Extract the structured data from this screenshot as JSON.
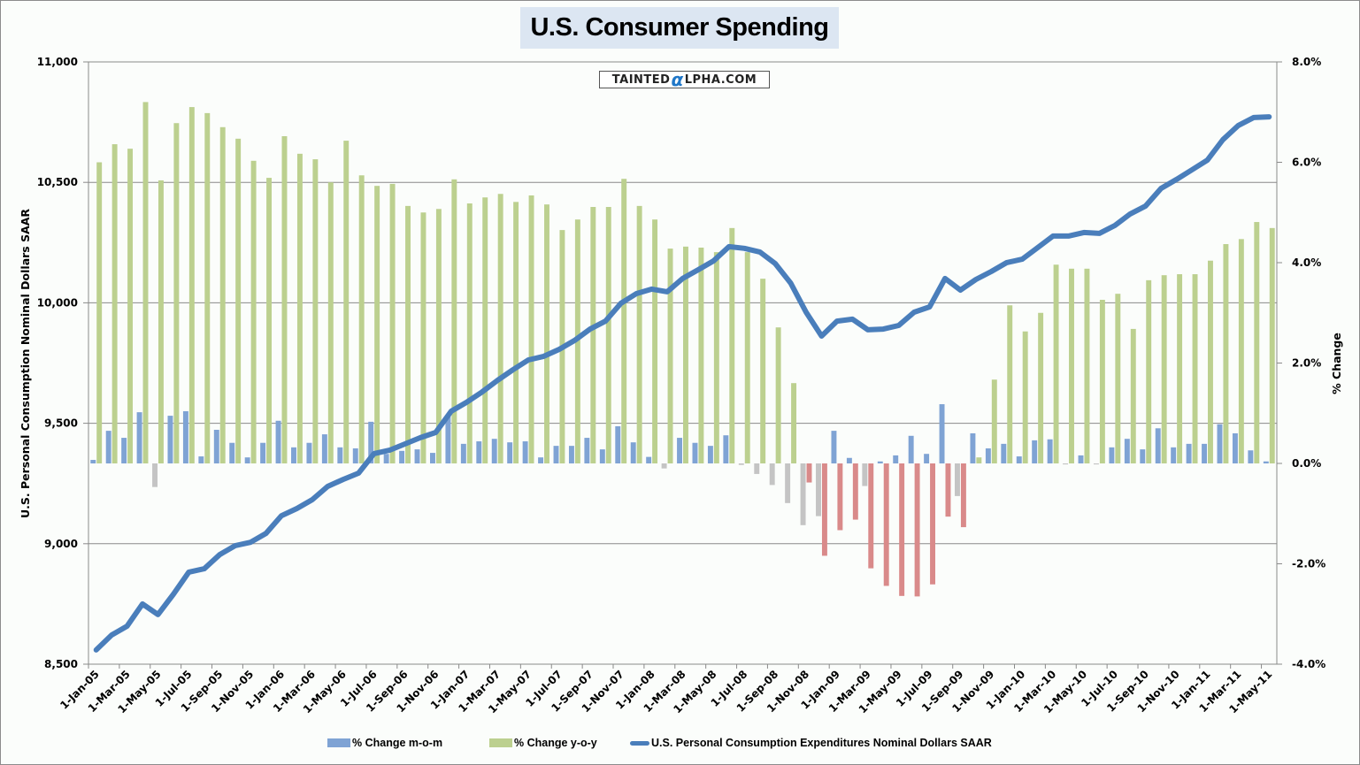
{
  "chart_data": {
    "type": "bar",
    "title": "U.S. Consumer Spending",
    "watermark": {
      "prefix": "TAINTED",
      "alpha": "α",
      "suffix": "LPHA.COM"
    },
    "ylabel_left": "U.S. Personal Consumption  Nominal Dollars  SAAR",
    "ylabel_right": "% Change",
    "xlabel": "",
    "ylim_left": [
      8500,
      11000
    ],
    "ylim_right": [
      -4.0,
      8.0
    ],
    "yticks_left": [
      "8,500",
      "9,000",
      "9,500",
      "10,000",
      "10,500",
      "11,000"
    ],
    "yticks_left_values": [
      8500,
      9000,
      9500,
      10000,
      10500,
      11000
    ],
    "yticks_right": [
      "-4.0%",
      "-2.0%",
      "0.0%",
      "2.0%",
      "4.0%",
      "6.0%",
      "8.0%"
    ],
    "yticks_right_values": [
      -4,
      -2,
      0,
      2,
      4,
      6,
      8
    ],
    "grid": "horizontal, left axis",
    "legend_position": "bottom",
    "x": [
      "1-Jan-05",
      "1-Feb-05",
      "1-Mar-05",
      "1-Apr-05",
      "1-May-05",
      "1-Jun-05",
      "1-Jul-05",
      "1-Aug-05",
      "1-Sep-05",
      "1-Oct-05",
      "1-Nov-05",
      "1-Dec-05",
      "1-Jan-06",
      "1-Feb-06",
      "1-Mar-06",
      "1-Apr-06",
      "1-May-06",
      "1-Jun-06",
      "1-Jul-06",
      "1-Aug-06",
      "1-Sep-06",
      "1-Oct-06",
      "1-Nov-06",
      "1-Dec-06",
      "1-Jan-07",
      "1-Feb-07",
      "1-Mar-07",
      "1-Apr-07",
      "1-May-07",
      "1-Jun-07",
      "1-Jul-07",
      "1-Aug-07",
      "1-Sep-07",
      "1-Oct-07",
      "1-Nov-07",
      "1-Dec-07",
      "1-Jan-08",
      "1-Feb-08",
      "1-Mar-08",
      "1-Apr-08",
      "1-May-08",
      "1-Jun-08",
      "1-Jul-08",
      "1-Aug-08",
      "1-Sep-08",
      "1-Oct-08",
      "1-Nov-08",
      "1-Dec-08",
      "1-Jan-09",
      "1-Feb-09",
      "1-Mar-09",
      "1-Apr-09",
      "1-May-09",
      "1-Jun-09",
      "1-Jul-09",
      "1-Aug-09",
      "1-Sep-09",
      "1-Oct-09",
      "1-Nov-09",
      "1-Dec-09",
      "1-Jan-10",
      "1-Feb-10",
      "1-Mar-10",
      "1-Apr-10",
      "1-May-10",
      "1-Jun-10",
      "1-Jul-10",
      "1-Aug-10",
      "1-Sep-10",
      "1-Oct-10",
      "1-Nov-10",
      "1-Dec-10",
      "1-Jan-11",
      "1-Feb-11",
      "1-Mar-11",
      "1-Apr-11",
      "1-May-11"
    ],
    "xtick_labels": [
      "1-Jan-05",
      "1-Mar-05",
      "1-May-05",
      "1-Jul-05",
      "1-Sep-05",
      "1-Nov-05",
      "1-Jan-06",
      "1-Mar-06",
      "1-May-06",
      "1-Jul-06",
      "1-Sep-06",
      "1-Nov-06",
      "1-Jan-07",
      "1-Mar-07",
      "1-May-07",
      "1-Jul-07",
      "1-Sep-07",
      "1-Nov-07",
      "1-Jan-08",
      "1-Mar-08",
      "1-May-08",
      "1-Jul-08",
      "1-Sep-08",
      "1-Nov-08",
      "1-Jan-09",
      "1-Mar-09",
      "1-May-09",
      "1-Jul-09",
      "1-Sep-09",
      "1-Nov-09",
      "1-Jan-10",
      "1-Mar-10",
      "1-May-10",
      "1-Jul-10",
      "1-Sep-10",
      "1-Nov-10",
      "1-Jan-11",
      "1-Mar-11",
      "1-May-11"
    ],
    "series": [
      {
        "name": "% Change m-o-m",
        "type": "bar",
        "axis": "right",
        "color": "#7fa3d4",
        "negative_color": "#c4c4c4",
        "values": [
          0.07,
          0.65,
          0.51,
          1.02,
          -0.47,
          0.95,
          1.04,
          0.14,
          0.67,
          0.41,
          0.12,
          0.41,
          0.85,
          0.32,
          0.41,
          0.58,
          0.32,
          0.3,
          0.83,
          0.19,
          0.25,
          0.28,
          0.21,
          0.95,
          0.39,
          0.44,
          0.49,
          0.42,
          0.44,
          0.12,
          0.35,
          0.35,
          0.51,
          0.28,
          0.74,
          0.42,
          0.13,
          -0.1,
          0.51,
          0.41,
          0.35,
          0.56,
          -0.03,
          -0.21,
          -0.43,
          -0.79,
          -1.23,
          -1.05,
          0.65,
          0.11,
          -0.45,
          0.04,
          0.16,
          0.55,
          0.19,
          1.18,
          -0.65,
          0.6,
          0.3,
          0.39,
          0.14,
          0.46,
          0.48,
          -0.02,
          0.16,
          -0.02,
          0.32,
          0.49,
          0.28,
          0.7,
          0.32,
          0.39,
          0.39,
          0.78,
          0.6,
          0.26,
          0.04
        ]
      },
      {
        "name": "% Change y-o-y",
        "type": "bar",
        "axis": "right",
        "color": "#bcd08f",
        "negative_color": "#d98a8a",
        "values": [
          6.0,
          6.36,
          6.27,
          7.2,
          5.64,
          6.78,
          7.1,
          6.98,
          6.7,
          6.47,
          6.03,
          5.69,
          6.52,
          6.17,
          6.06,
          5.6,
          6.43,
          5.74,
          5.53,
          5.57,
          5.13,
          5.0,
          5.07,
          5.66,
          5.18,
          5.3,
          5.37,
          5.21,
          5.34,
          5.16,
          4.65,
          4.86,
          5.11,
          5.11,
          5.67,
          5.13,
          4.86,
          4.28,
          4.32,
          4.3,
          4.21,
          4.69,
          4.21,
          3.68,
          2.71,
          1.6,
          -0.38,
          -1.84,
          -1.33,
          -1.12,
          -2.09,
          -2.44,
          -2.64,
          -2.65,
          -2.41,
          -1.06,
          -1.27,
          0.12,
          1.67,
          3.15,
          2.63,
          3.0,
          3.96,
          3.88,
          3.88,
          3.26,
          3.38,
          2.68,
          3.65,
          3.75,
          3.77,
          3.77,
          4.04,
          4.37,
          4.47,
          4.81,
          4.69
        ]
      },
      {
        "name": "U.S. Personal Consumption Expenditures Nominal Dollars SAAR",
        "type": "line",
        "axis": "left",
        "color": "#4a7ebb",
        "values": [
          8559,
          8621,
          8658,
          8750,
          8706,
          8790,
          8882,
          8896,
          8955,
          8992,
          9006,
          9043,
          9116,
          9146,
          9183,
          9238,
          9267,
          9293,
          9374,
          9388,
          9414,
          9440,
          9462,
          9550,
          9587,
          9630,
          9678,
          9722,
          9763,
          9778,
          9807,
          9844,
          9891,
          9924,
          9998,
          10038,
          10057,
          10046,
          10101,
          10137,
          10174,
          10233,
          10226,
          10211,
          10163,
          10082,
          9961,
          9862,
          9924,
          9932,
          9888,
          9891,
          9906,
          9961,
          9983,
          10101,
          10053,
          10097,
          10130,
          10167,
          10181,
          10229,
          10277,
          10277,
          10292,
          10288,
          10321,
          10369,
          10402,
          10475,
          10512,
          10552,
          10592,
          10677,
          10736,
          10769,
          10772
        ]
      }
    ]
  }
}
